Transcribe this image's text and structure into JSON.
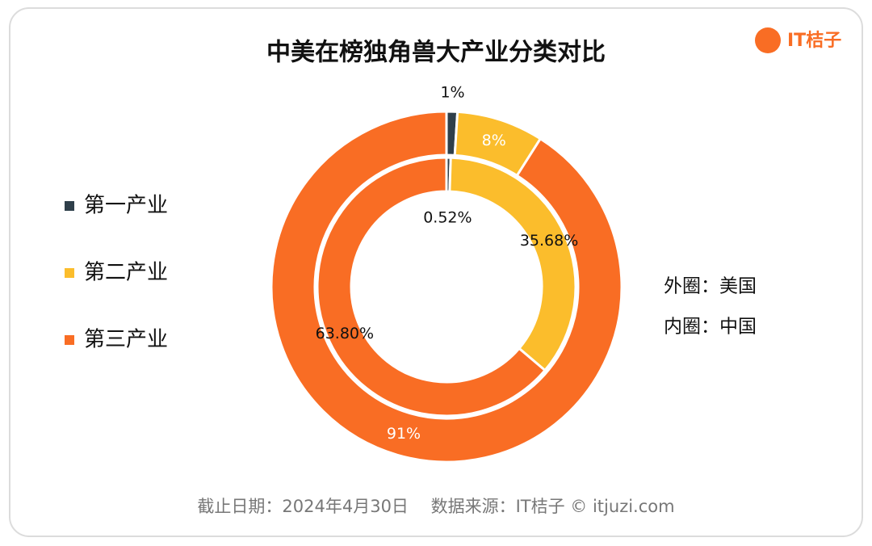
{
  "chart_data": {
    "type": "donut",
    "title": "中美在榜独角兽大产业分类对比",
    "categories": [
      "第一产业",
      "第二产业",
      "第三产业"
    ],
    "colors": [
      "#2f3f4a",
      "#fbbd2c",
      "#f96d24"
    ],
    "series": [
      {
        "values": [
          1,
          8,
          91
        ],
        "value_labels": [
          "1%",
          "8%",
          "91%"
        ]
      },
      {
        "values": [
          0.52,
          35.68,
          63.8
        ],
        "value_labels": [
          "0.52%",
          "35.68%",
          "63.80%"
        ]
      }
    ],
    "annotations": [
      "外圈：美国",
      "内圈：中国"
    ],
    "legend": "left"
  },
  "footer": "截止日期：2024年4月30日　 数据来源：IT桔子 © itjuzi.com",
  "logo": "IT桔子"
}
